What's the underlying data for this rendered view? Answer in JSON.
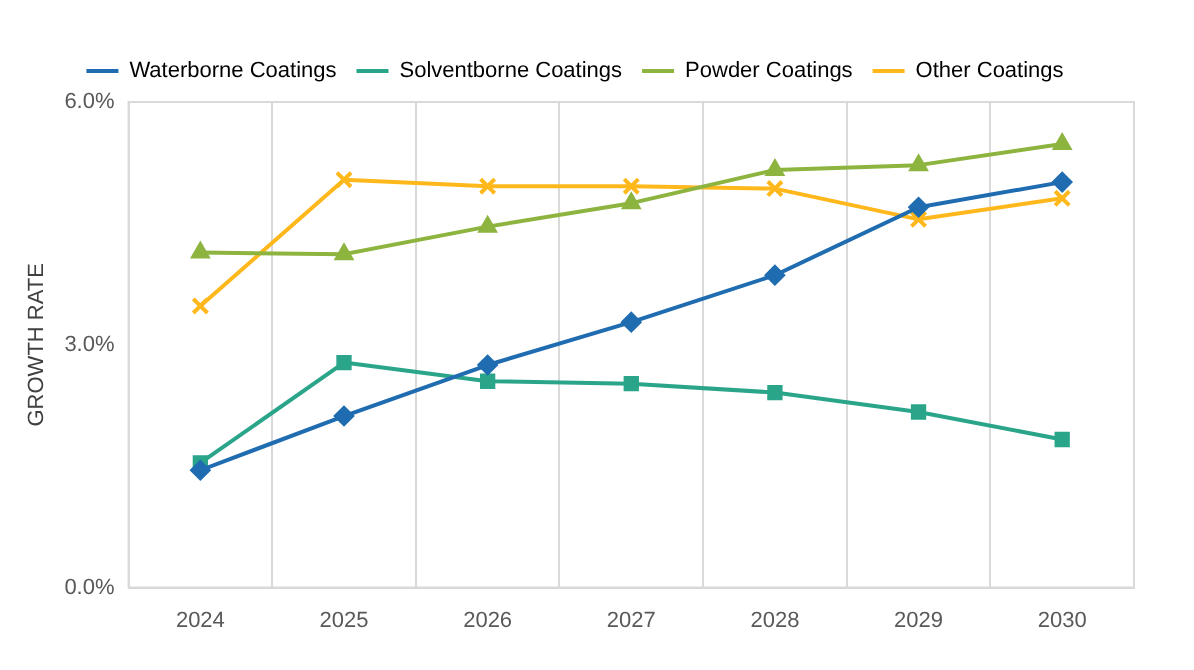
{
  "chart_data": {
    "type": "line",
    "ylabel": "GROWTH RATE",
    "categories": [
      "2024",
      "2025",
      "2026",
      "2027",
      "2028",
      "2029",
      "2030"
    ],
    "series": [
      {
        "name": "Waterborne Coatings",
        "color": "#1f6cb0",
        "marker": "diamond",
        "values": [
          1.45,
          2.12,
          2.75,
          3.28,
          3.86,
          4.7,
          5.01
        ]
      },
      {
        "name": "Solventborne Coatings",
        "color": "#2aa58a",
        "marker": "square",
        "values": [
          1.54,
          2.78,
          2.55,
          2.52,
          2.41,
          2.17,
          1.83
        ]
      },
      {
        "name": "Powder Coatings",
        "color": "#8db43f",
        "marker": "triangle",
        "values": [
          4.14,
          4.12,
          4.46,
          4.75,
          5.16,
          5.22,
          5.48
        ]
      },
      {
        "name": "Other Coatings",
        "color": "#ffb81c",
        "marker": "cross",
        "values": [
          3.48,
          5.04,
          4.96,
          4.96,
          4.93,
          4.55,
          4.81
        ]
      }
    ],
    "ylim": [
      0,
      6
    ],
    "yticks": [
      {
        "value": 0,
        "label": "0.0%"
      },
      {
        "value": 3,
        "label": "3.0%"
      },
      {
        "value": 6,
        "label": "6.0%"
      }
    ],
    "grid": "x",
    "legend": "top"
  }
}
